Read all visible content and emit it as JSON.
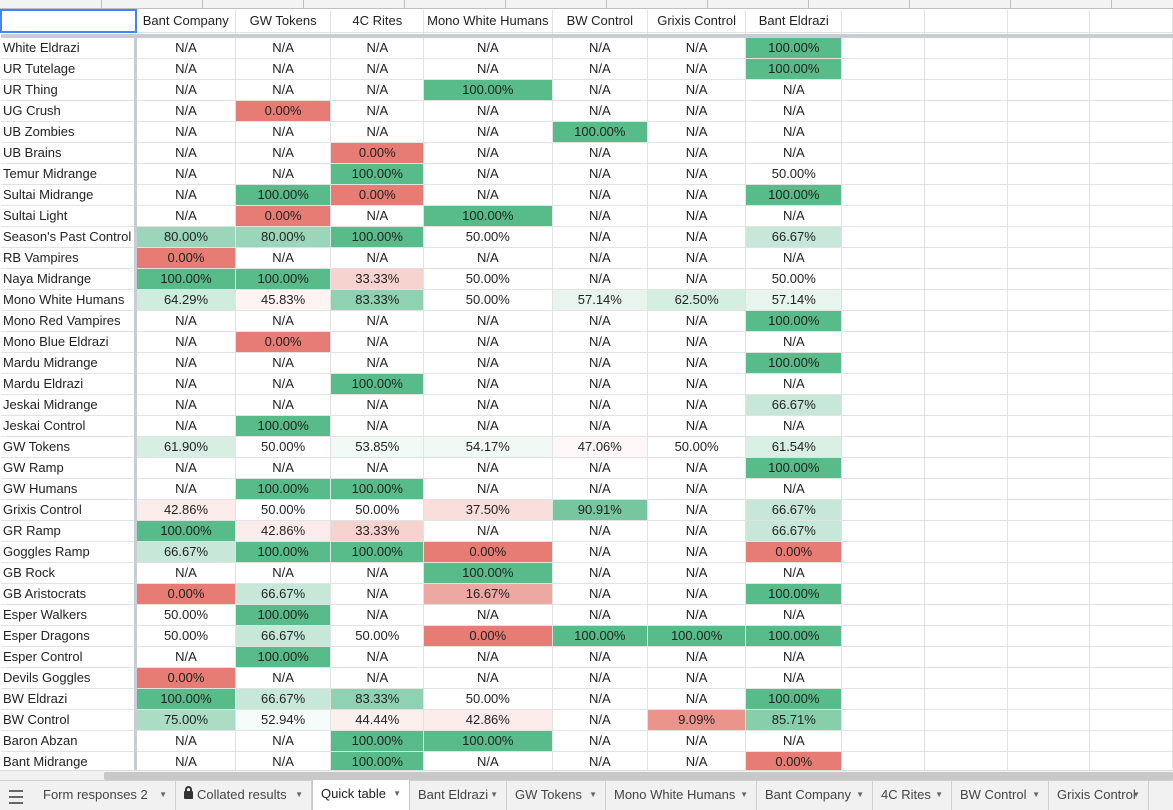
{
  "columns": [
    "Bant Company",
    "GW Tokens",
    "4C Rites",
    "Mono White Humans",
    "BW Control",
    "Grixis Control",
    "Bant Eldrazi"
  ],
  "rows": [
    {
      "name": "White Eldrazi",
      "cells": [
        "N/A",
        "N/A",
        "N/A",
        "N/A",
        "N/A",
        "N/A",
        "100.00%"
      ]
    },
    {
      "name": "UR Tutelage",
      "cells": [
        "N/A",
        "N/A",
        "N/A",
        "N/A",
        "N/A",
        "N/A",
        "100.00%"
      ]
    },
    {
      "name": "UR Thing",
      "cells": [
        "N/A",
        "N/A",
        "N/A",
        "100.00%",
        "N/A",
        "N/A",
        "N/A"
      ]
    },
    {
      "name": "UG Crush",
      "cells": [
        "N/A",
        "0.00%",
        "N/A",
        "N/A",
        "N/A",
        "N/A",
        "N/A"
      ]
    },
    {
      "name": "UB Zombies",
      "cells": [
        "N/A",
        "N/A",
        "N/A",
        "N/A",
        "100.00%",
        "N/A",
        "N/A"
      ]
    },
    {
      "name": "UB Brains",
      "cells": [
        "N/A",
        "N/A",
        "0.00%",
        "N/A",
        "N/A",
        "N/A",
        "N/A"
      ]
    },
    {
      "name": "Temur Midrange",
      "cells": [
        "N/A",
        "N/A",
        "100.00%",
        "N/A",
        "N/A",
        "N/A",
        "50.00%"
      ]
    },
    {
      "name": "Sultai Midrange",
      "cells": [
        "N/A",
        "100.00%",
        "0.00%",
        "N/A",
        "N/A",
        "N/A",
        "100.00%"
      ]
    },
    {
      "name": "Sultai Light",
      "cells": [
        "N/A",
        "0.00%",
        "N/A",
        "100.00%",
        "N/A",
        "N/A",
        "N/A"
      ]
    },
    {
      "name": "Season's Past Control",
      "cells": [
        "80.00%",
        "80.00%",
        "100.00%",
        "50.00%",
        "N/A",
        "N/A",
        "66.67%"
      ]
    },
    {
      "name": "RB Vampires",
      "cells": [
        "0.00%",
        "N/A",
        "N/A",
        "N/A",
        "N/A",
        "N/A",
        "N/A"
      ]
    },
    {
      "name": "Naya Midrange",
      "cells": [
        "100.00%",
        "100.00%",
        "33.33%",
        "50.00%",
        "N/A",
        "N/A",
        "50.00%"
      ]
    },
    {
      "name": "Mono White Humans",
      "cells": [
        "64.29%",
        "45.83%",
        "83.33%",
        "50.00%",
        "57.14%",
        "62.50%",
        "57.14%"
      ]
    },
    {
      "name": "Mono Red Vampires",
      "cells": [
        "N/A",
        "N/A",
        "N/A",
        "N/A",
        "N/A",
        "N/A",
        "100.00%"
      ]
    },
    {
      "name": "Mono Blue Eldrazi",
      "cells": [
        "N/A",
        "0.00%",
        "N/A",
        "N/A",
        "N/A",
        "N/A",
        "N/A"
      ]
    },
    {
      "name": "Mardu Midrange",
      "cells": [
        "N/A",
        "N/A",
        "N/A",
        "N/A",
        "N/A",
        "N/A",
        "100.00%"
      ]
    },
    {
      "name": "Mardu Eldrazi",
      "cells": [
        "N/A",
        "N/A",
        "100.00%",
        "N/A",
        "N/A",
        "N/A",
        "N/A"
      ]
    },
    {
      "name": "Jeskai Midrange",
      "cells": [
        "N/A",
        "N/A",
        "N/A",
        "N/A",
        "N/A",
        "N/A",
        "66.67%"
      ]
    },
    {
      "name": "Jeskai Control",
      "cells": [
        "N/A",
        "100.00%",
        "N/A",
        "N/A",
        "N/A",
        "N/A",
        "N/A"
      ]
    },
    {
      "name": "GW Tokens",
      "cells": [
        "61.90%",
        "50.00%",
        "53.85%",
        "54.17%",
        "47.06%",
        "50.00%",
        "61.54%"
      ]
    },
    {
      "name": "GW Ramp",
      "cells": [
        "N/A",
        "N/A",
        "N/A",
        "N/A",
        "N/A",
        "N/A",
        "100.00%"
      ]
    },
    {
      "name": "GW Humans",
      "cells": [
        "N/A",
        "100.00%",
        "100.00%",
        "N/A",
        "N/A",
        "N/A",
        "N/A"
      ]
    },
    {
      "name": "Grixis Control",
      "cells": [
        "42.86%",
        "50.00%",
        "50.00%",
        "37.50%",
        "90.91%",
        "N/A",
        "66.67%"
      ]
    },
    {
      "name": "GR Ramp",
      "cells": [
        "100.00%",
        "42.86%",
        "33.33%",
        "N/A",
        "N/A",
        "N/A",
        "66.67%"
      ]
    },
    {
      "name": "Goggles Ramp",
      "cells": [
        "66.67%",
        "100.00%",
        "100.00%",
        "0.00%",
        "N/A",
        "N/A",
        "0.00%"
      ]
    },
    {
      "name": "GB Rock",
      "cells": [
        "N/A",
        "N/A",
        "N/A",
        "100.00%",
        "N/A",
        "N/A",
        "N/A"
      ]
    },
    {
      "name": "GB Aristocrats",
      "cells": [
        "0.00%",
        "66.67%",
        "N/A",
        "16.67%",
        "N/A",
        "N/A",
        "100.00%"
      ]
    },
    {
      "name": "Esper Walkers",
      "cells": [
        "50.00%",
        "100.00%",
        "N/A",
        "N/A",
        "N/A",
        "N/A",
        "N/A"
      ]
    },
    {
      "name": "Esper Dragons",
      "cells": [
        "50.00%",
        "66.67%",
        "50.00%",
        "0.00%",
        "100.00%",
        "100.00%",
        "100.00%"
      ]
    },
    {
      "name": "Esper Control",
      "cells": [
        "N/A",
        "100.00%",
        "N/A",
        "N/A",
        "N/A",
        "N/A",
        "N/A"
      ]
    },
    {
      "name": "Devils Goggles",
      "cells": [
        "0.00%",
        "N/A",
        "N/A",
        "N/A",
        "N/A",
        "N/A",
        "N/A"
      ]
    },
    {
      "name": "BW Eldrazi",
      "cells": [
        "100.00%",
        "66.67%",
        "83.33%",
        "50.00%",
        "N/A",
        "N/A",
        "100.00%"
      ]
    },
    {
      "name": "BW Control",
      "cells": [
        "75.00%",
        "52.94%",
        "44.44%",
        "42.86%",
        "N/A",
        "9.09%",
        "85.71%"
      ]
    },
    {
      "name": "Baron Abzan",
      "cells": [
        "N/A",
        "N/A",
        "100.00%",
        "100.00%",
        "N/A",
        "N/A",
        "N/A"
      ]
    },
    {
      "name": "Bant Midrange",
      "cells": [
        "N/A",
        "N/A",
        "100.00%",
        "N/A",
        "N/A",
        "N/A",
        "0.00%"
      ]
    }
  ],
  "tabs": [
    {
      "label": "Form responses 2",
      "locked": false,
      "active": false
    },
    {
      "label": "Collated results",
      "locked": true,
      "active": false
    },
    {
      "label": "Quick table",
      "locked": false,
      "active": true
    },
    {
      "label": "Bant Eldrazi",
      "locked": false,
      "active": false
    },
    {
      "label": "GW Tokens",
      "locked": false,
      "active": false
    },
    {
      "label": "Mono White Humans",
      "locked": false,
      "active": false
    },
    {
      "label": "Bant Company",
      "locked": false,
      "active": false
    },
    {
      "label": "4C Rites",
      "locked": false,
      "active": false
    },
    {
      "label": "BW Control",
      "locked": false,
      "active": false
    },
    {
      "label": "Grixis Control",
      "locked": false,
      "active": false
    }
  ],
  "colors": {
    "low": "#e67c73",
    "mid": "#ffffff",
    "high": "#57bb8a"
  },
  "icons": {
    "add_sheet": "hamburger-icon",
    "lock": "lock-icon",
    "tab_menu": "caret-down-icon"
  }
}
